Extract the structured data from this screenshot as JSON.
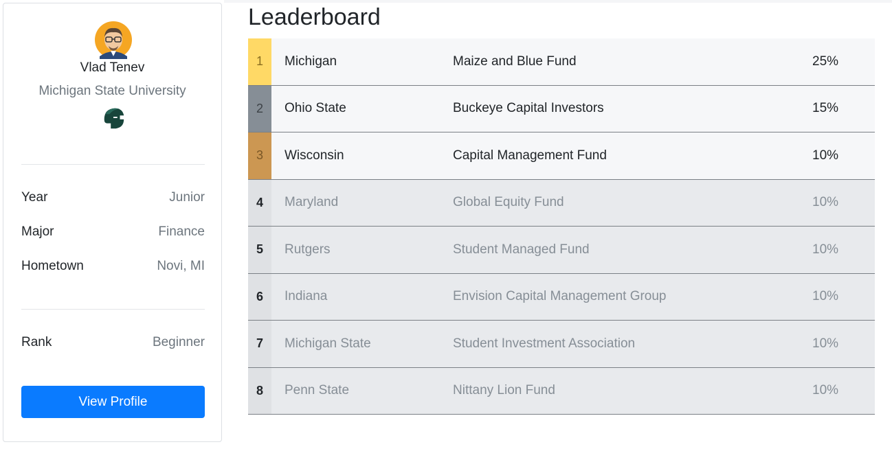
{
  "profile": {
    "name": "Vlad Tenev",
    "school": "Michigan State University",
    "fields": [
      {
        "label": "Year",
        "value": "Junior"
      },
      {
        "label": "Major",
        "value": "Finance"
      },
      {
        "label": "Hometown",
        "value": "Novi, MI"
      }
    ],
    "rank": {
      "label": "Rank",
      "value": "Beginner"
    },
    "button_label": "View Profile"
  },
  "leaderboard": {
    "title": "Leaderboard",
    "rows": [
      {
        "rank": "1",
        "school": "Michigan",
        "fund": "Maize and Blue Fund",
        "pct": "25%"
      },
      {
        "rank": "2",
        "school": "Ohio State",
        "fund": "Buckeye Capital Investors",
        "pct": "15%"
      },
      {
        "rank": "3",
        "school": "Wisconsin",
        "fund": "Capital Management Fund",
        "pct": "10%"
      },
      {
        "rank": "4",
        "school": "Maryland",
        "fund": "Global Equity Fund",
        "pct": "10%"
      },
      {
        "rank": "5",
        "school": "Rutgers",
        "fund": "Student Managed Fund",
        "pct": "10%"
      },
      {
        "rank": "6",
        "school": "Indiana",
        "fund": "Envision Capital Management Group",
        "pct": "10%"
      },
      {
        "rank": "7",
        "school": "Michigan State",
        "fund": "Student Investment Association",
        "pct": "10%"
      },
      {
        "rank": "8",
        "school": "Penn State",
        "fund": "Nittany Lion Fund",
        "pct": "10%"
      }
    ]
  },
  "colors": {
    "accent": "#0a7bff",
    "gold": "#ffd966",
    "silver": "#868e96",
    "bronze": "#cc9752",
    "spartan_green": "#18453b"
  },
  "icons": {
    "avatar": "avatar-cartoon",
    "school_logo": "spartan-helmet-icon"
  }
}
